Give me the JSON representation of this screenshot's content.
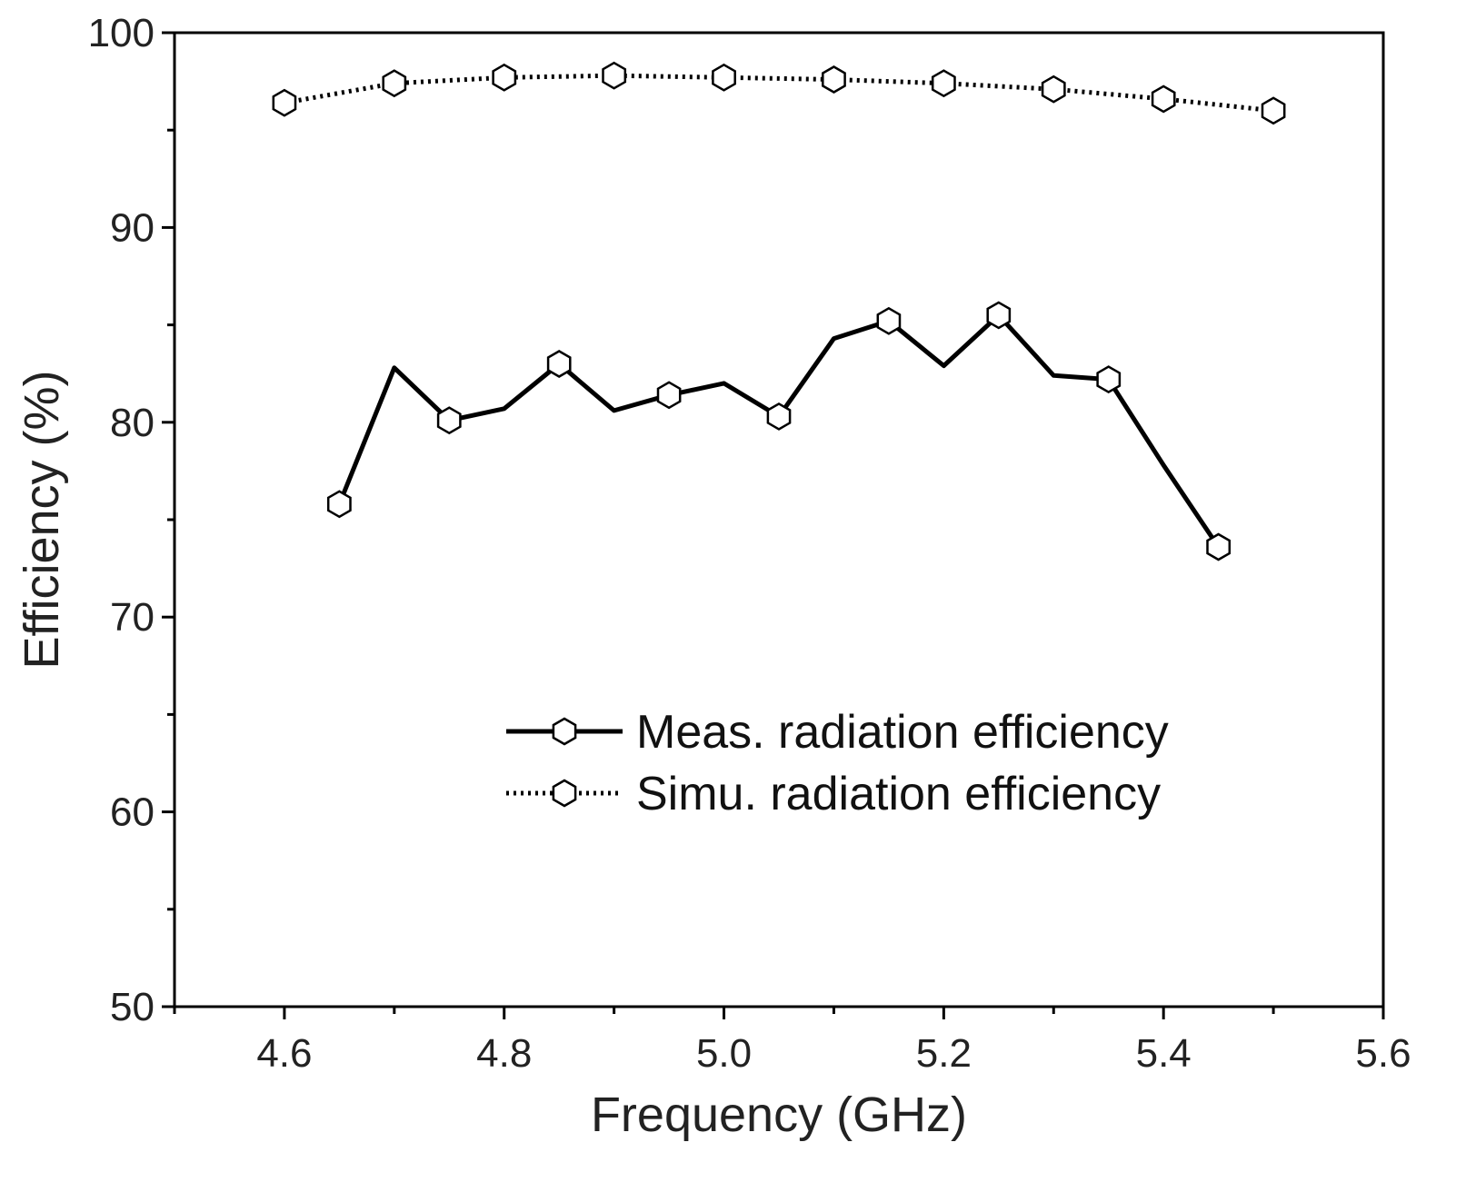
{
  "chart_data": {
    "type": "line",
    "title": "",
    "xlabel": "Frequency (GHz)",
    "ylabel": "Efficiency (%)",
    "xlim": [
      4.5,
      5.6
    ],
    "ylim": [
      50,
      100
    ],
    "x_ticks": [
      4.6,
      4.8,
      5.0,
      5.2,
      5.4,
      5.6
    ],
    "x_tick_labels": [
      "4.6",
      "4.8",
      "5.0",
      "5.2",
      "5.4",
      "5.6"
    ],
    "y_ticks": [
      50,
      60,
      70,
      80,
      90,
      100
    ],
    "y_tick_labels": [
      "50",
      "60",
      "70",
      "80",
      "90",
      "100"
    ],
    "grid": false,
    "legend_position": "lower-right",
    "series": [
      {
        "name": "Meas. radiation efficiency",
        "style": "solid",
        "color": "#000000",
        "x": [
          4.65,
          4.7,
          4.75,
          4.8,
          4.85,
          4.9,
          4.95,
          5.0,
          5.05,
          5.1,
          5.15,
          5.2,
          5.25,
          5.3,
          5.35,
          5.4,
          5.45
        ],
        "values": [
          75.8,
          82.8,
          80.1,
          80.7,
          83.0,
          80.6,
          81.4,
          82.0,
          80.3,
          84.3,
          85.2,
          82.9,
          85.5,
          82.4,
          82.2,
          77.8,
          73.6
        ],
        "marker_x": [
          4.65,
          4.75,
          4.85,
          4.95,
          5.05,
          5.15,
          5.25,
          5.35,
          5.45
        ]
      },
      {
        "name": "Simu. radiation efficiency",
        "style": "dotted",
        "color": "#000000",
        "x": [
          4.6,
          4.7,
          4.8,
          4.9,
          5.0,
          5.1,
          5.2,
          5.3,
          5.4,
          5.5
        ],
        "values": [
          96.4,
          97.4,
          97.7,
          97.8,
          97.7,
          97.6,
          97.4,
          97.1,
          96.6,
          96.0
        ],
        "marker_x": [
          4.6,
          4.7,
          4.8,
          4.9,
          5.0,
          5.1,
          5.2,
          5.3,
          5.4,
          5.5
        ]
      }
    ]
  }
}
